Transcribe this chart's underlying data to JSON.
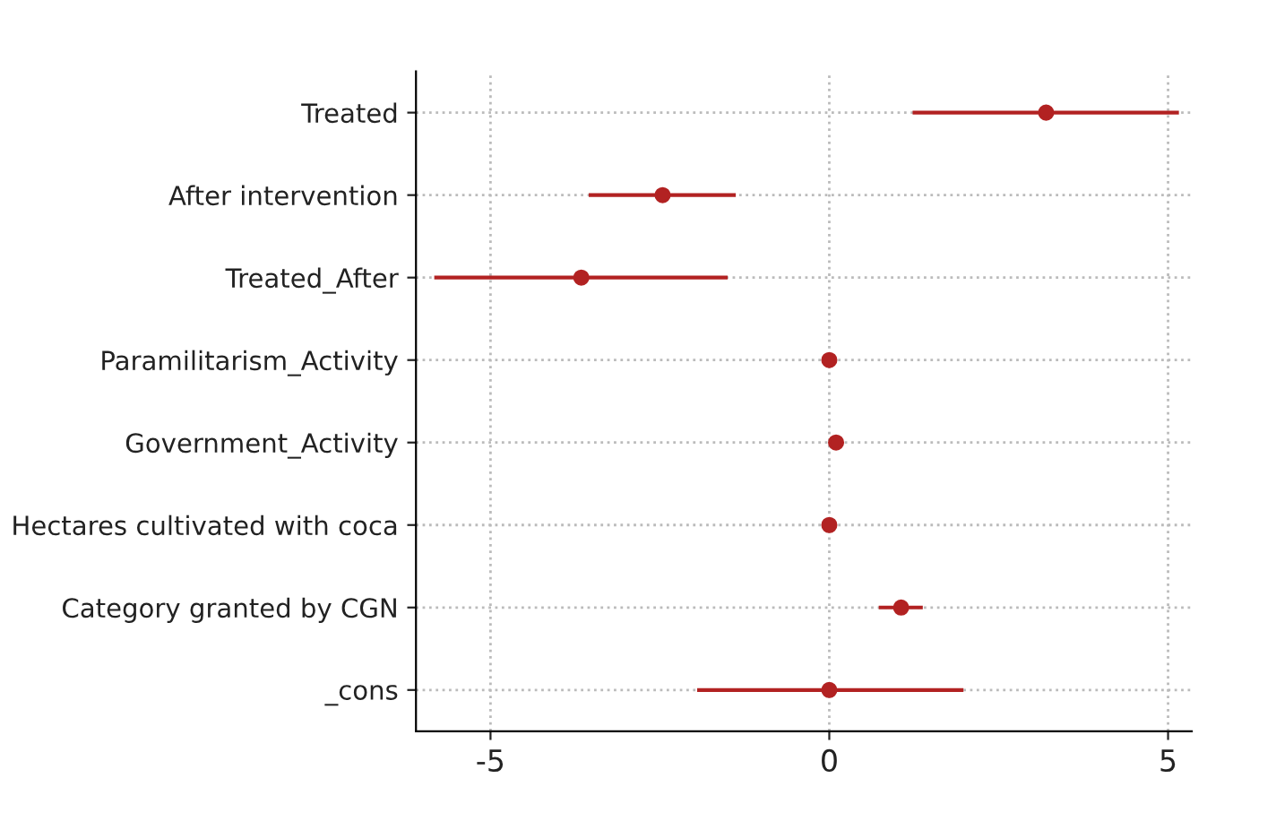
{
  "chart_data": {
    "type": "scatter",
    "orientation": "horizontal",
    "categories": [
      "Treated",
      "After intervention",
      "Treated_After",
      "Paramilitarism_Activity",
      "Government_Activity",
      "Hectares cultivated with coca",
      "Category granted by CGN",
      "_cons"
    ],
    "color": "#b22222",
    "values": [
      3.2,
      -2.46,
      -3.66,
      0,
      0.1,
      0,
      1.06,
      0
    ],
    "errors": [
      [
        1.23,
        5.16
      ],
      [
        -3.55,
        -1.38
      ],
      [
        -5.83,
        -1.5
      ],
      null,
      null,
      null,
      [
        0.73,
        1.38
      ],
      [
        -1.95,
        1.98
      ]
    ],
    "xlim": [
      -6.1,
      5.35
    ],
    "xticks": [
      {
        "value": -5,
        "label": "-5"
      },
      0,
      5
    ],
    "grid": true,
    "marker": "circle",
    "line_style": "dotted"
  }
}
